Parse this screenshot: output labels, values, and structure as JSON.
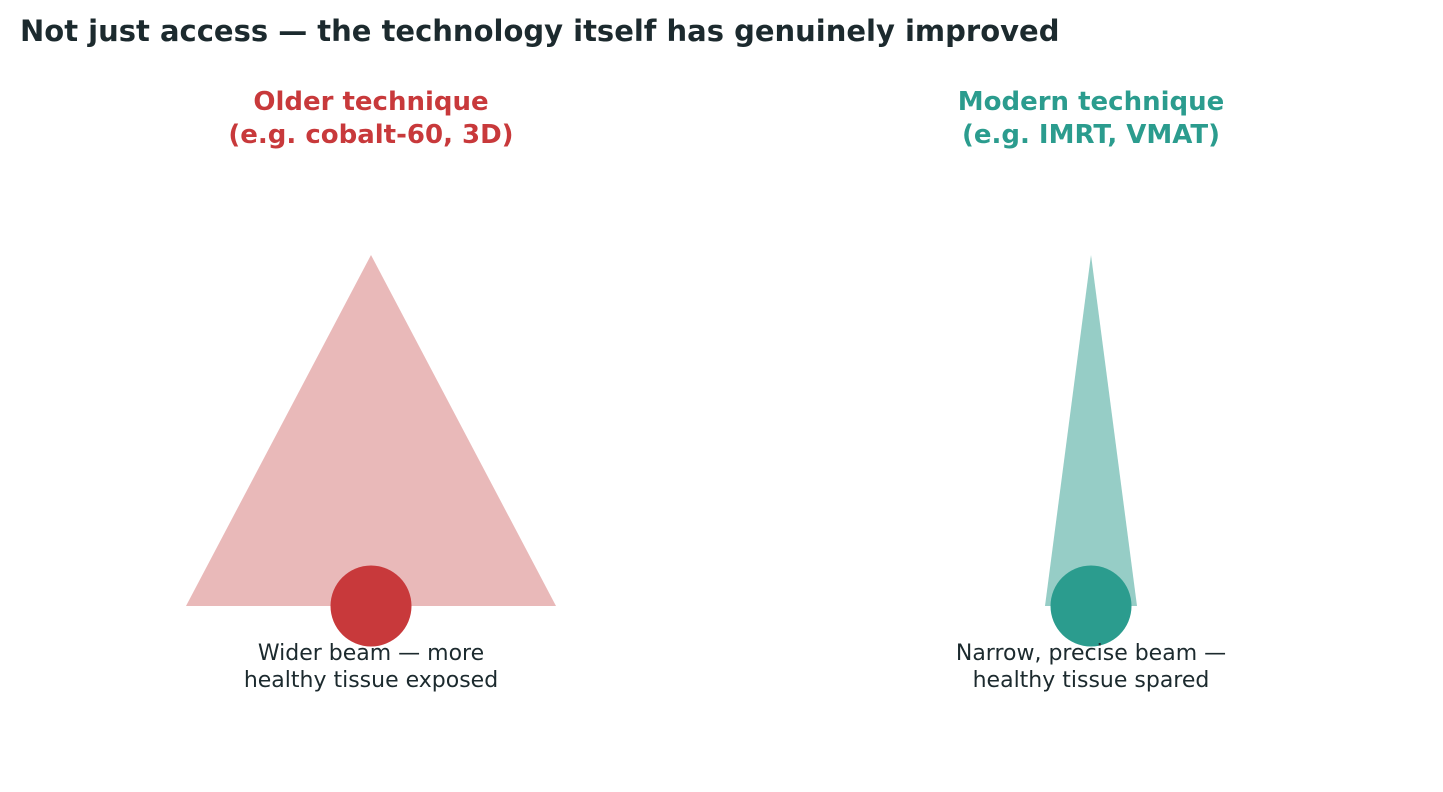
{
  "title": "Not just access — the technology itself has genuinely improved",
  "panels": [
    {
      "heading_line1": "Older technique",
      "heading_line2": "(e.g. cobalt-60, 3D)",
      "caption_line1": "Wider beam — more",
      "caption_line2": "healthy tissue exposed",
      "accent_color": "#c8393b",
      "beam_color": "#e9b9b9",
      "beam_icon": "wide-beam-icon",
      "target_icon": "tumor-target-icon"
    },
    {
      "heading_line1": "Modern technique",
      "heading_line2": "(e.g. IMRT, VMAT)",
      "caption_line1": "Narrow, precise beam —",
      "caption_line2": "healthy tissue spared",
      "accent_color": "#2b9c8e",
      "beam_color": "#96cdc6",
      "beam_icon": "narrow-beam-icon",
      "target_icon": "tumor-target-icon"
    }
  ]
}
